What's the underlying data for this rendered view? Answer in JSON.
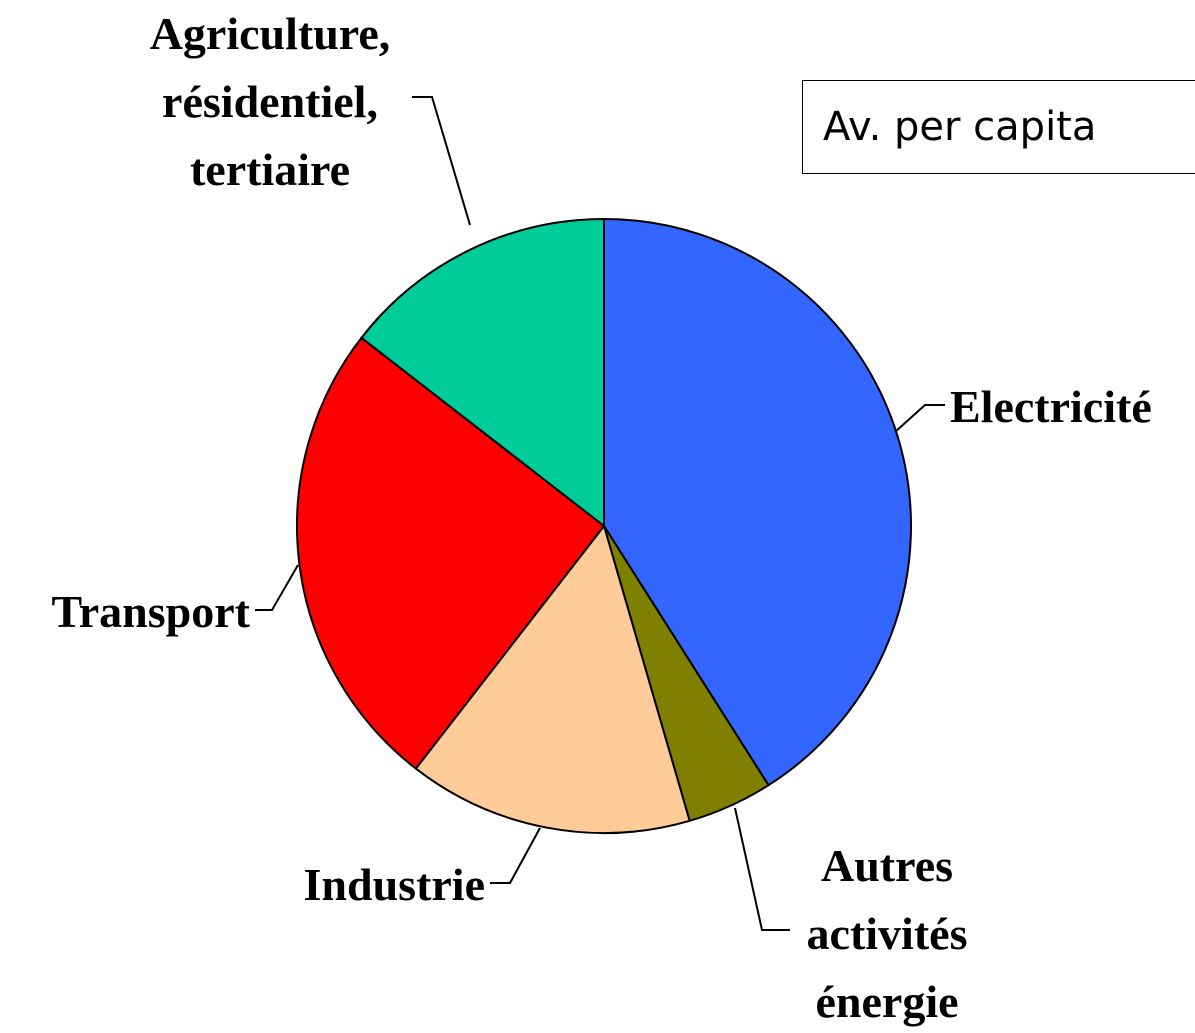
{
  "chart_data": {
    "type": "pie",
    "categories": [
      "Electricité",
      "Autres\nactivités\nénergie",
      "Industrie",
      "Transport",
      "Agriculture,\nrésidentiel,\ntertiaire"
    ],
    "values": [
      41,
      4.5,
      15,
      25,
      14.5
    ],
    "colors": [
      "#3366ff",
      "#808000",
      "#ffcc99",
      "#ff0000",
      "#00cc99"
    ],
    "annotation": "Av. per capita"
  }
}
